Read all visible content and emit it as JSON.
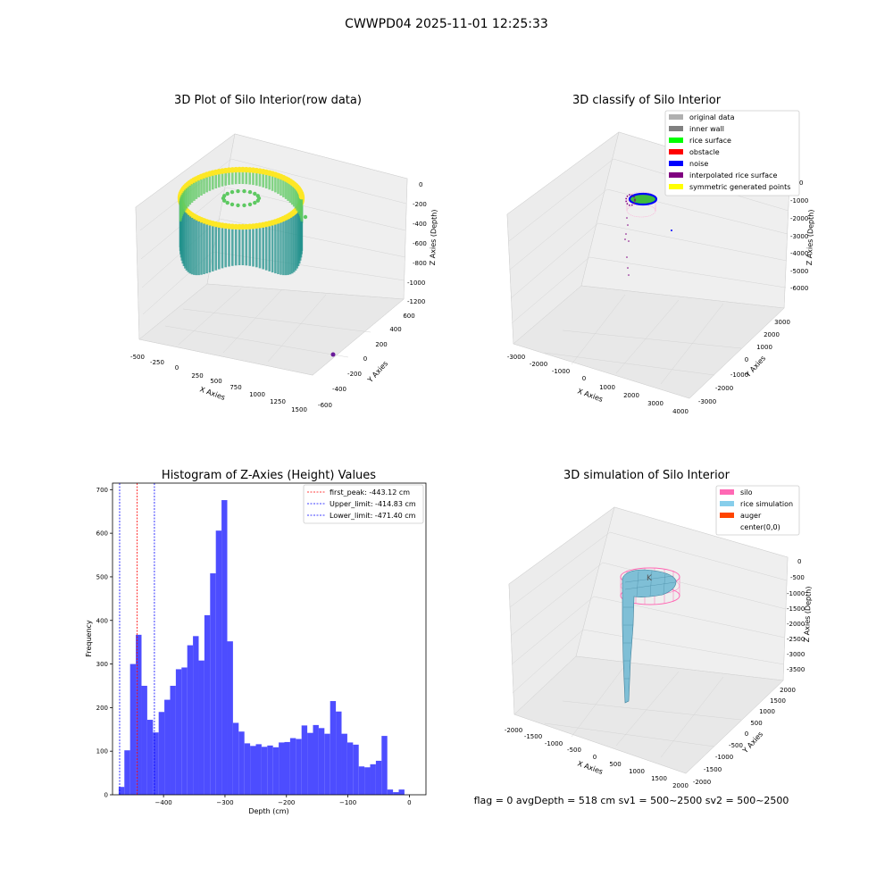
{
  "suptitle": "CWWPD04 2025-11-01 12:25:33",
  "status_line": "flag = 0     avgDepth = 518 cm  sv1 = 500~2500  sv2 = 500~2500",
  "colors": {
    "bar": "#4d4dff",
    "first_peak": "#ff0000",
    "limit": "#0000ff",
    "pane": "#f2f2f2",
    "grid": "#d8d8d8"
  },
  "chart_data": [
    {
      "id": "raw",
      "type": "scatter",
      "title": "3D Plot of Silo Interior(row data)",
      "xlabel": "X Axies",
      "ylabel": "Y Axies",
      "zlabel": "Z Axies (Depth)",
      "x_ticks": [
        "-500",
        "-250",
        "0",
        "250",
        "500",
        "750",
        "1000",
        "1250",
        "1500"
      ],
      "y_ticks": [
        "-600",
        "-400",
        "-200",
        "0",
        "200",
        "400",
        "600"
      ],
      "z_ticks": [
        "0",
        "-200",
        "-400",
        "-600",
        "-800",
        "-1000",
        "-1200"
      ],
      "colormap": [
        "#440154",
        "#21918c",
        "#5ec962",
        "#fde725"
      ],
      "outlier_point": {
        "x": 1450,
        "y": -450,
        "z": -1200
      }
    },
    {
      "id": "classify",
      "type": "scatter",
      "title": "3D classify of Silo Interior",
      "xlabel": "X Axies",
      "ylabel": "Y Axies",
      "zlabel": "Z Axies (Depth)",
      "x_ticks": [
        "-3000",
        "-2000",
        "-1000",
        "0",
        "1000",
        "2000",
        "3000",
        "4000"
      ],
      "y_ticks": [
        "-3000",
        "-2000",
        "-1000",
        "0",
        "1000",
        "2000",
        "3000"
      ],
      "z_ticks": [
        "0",
        "-1000",
        "-2000",
        "-3000",
        "-4000",
        "-5000",
        "-6000"
      ],
      "legend": [
        {
          "label": "original data",
          "color": "#b0b0b0"
        },
        {
          "label": "inner wall",
          "color": "#808080"
        },
        {
          "label": "rice surface",
          "color": "#00ff00"
        },
        {
          "label": "obstacle",
          "color": "#ff0000"
        },
        {
          "label": "noise",
          "color": "#0000ff"
        },
        {
          "label": "interpolated rice surface",
          "color": "#800080"
        },
        {
          "label": "symmetric generated points",
          "color": "#ffff00"
        }
      ]
    },
    {
      "id": "histogram",
      "type": "bar",
      "title": "Histogram of Z-Axies (Height) Values",
      "xlabel": "Depth (cm)",
      "ylabel": "Frequency",
      "xlim": [
        -483,
        27
      ],
      "ylim": [
        0,
        715
      ],
      "x_ticks": [
        -400,
        -300,
        -200,
        -100,
        0
      ],
      "x_tick_labels": [
        "−400",
        "−300",
        "−200",
        "−100",
        "0"
      ],
      "y_ticks": [
        0,
        100,
        200,
        300,
        400,
        500,
        600,
        700
      ],
      "bins": {
        "start": -473,
        "width": 9.3,
        "counts": [
          18,
          102,
          300,
          367,
          250,
          172,
          143,
          190,
          218,
          250,
          288,
          292,
          343,
          364,
          308,
          412,
          508,
          606,
          676,
          352,
          165,
          145,
          118,
          112,
          116,
          110,
          113,
          109,
          120,
          121,
          130,
          128,
          159,
          142,
          160,
          153,
          140,
          215,
          191,
          140,
          120,
          115,
          65,
          63,
          70,
          78,
          135,
          12,
          6,
          12
        ]
      },
      "lines": [
        {
          "label": "first_peak: -443.12 cm",
          "x": -443.12,
          "color": "#ff0000"
        },
        {
          "label": "Upper_limit: -414.83 cm",
          "x": -414.83,
          "color": "#0000ff"
        },
        {
          "label": "Lower_limit: -471.40 cm",
          "x": -471.4,
          "color": "#0000ff"
        }
      ]
    },
    {
      "id": "simulation",
      "type": "area",
      "title": "3D simulation of Silo Interior",
      "xlabel": "X Axies",
      "ylabel": "Y Axies",
      "zlabel": "Z Axies (Depth)",
      "x_ticks": [
        "-2000",
        "-1500",
        "-1000",
        "-500",
        "0",
        "500",
        "1000",
        "1500",
        "2000"
      ],
      "y_ticks": [
        "-2000",
        "-1500",
        "-1000",
        "-500",
        "0",
        "500",
        "1000",
        "1500",
        "2000"
      ],
      "z_ticks": [
        "0",
        "-500",
        "-1000",
        "-1500",
        "-2000",
        "-2500",
        "-3000",
        "-3500"
      ],
      "legend": [
        {
          "label": "silo",
          "color": "#ff69b4"
        },
        {
          "label": "rice simulation",
          "color": "#87ceeb"
        },
        {
          "label": "auger",
          "color": "#ff4500"
        },
        {
          "label": "center(0,0)",
          "color": ""
        }
      ]
    }
  ]
}
